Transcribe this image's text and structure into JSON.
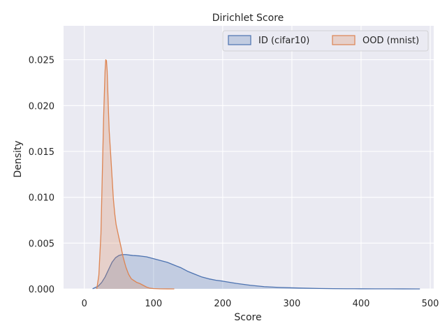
{
  "chart_data": {
    "type": "area",
    "title": "Dirichlet Score",
    "xlabel": "Score",
    "ylabel": "Density",
    "xlim": [
      -30,
      505
    ],
    "ylim": [
      0,
      0.0287
    ],
    "x_ticks": [
      0,
      100,
      200,
      300,
      400,
      500
    ],
    "x_tick_labels": [
      "0",
      "100",
      "200",
      "300",
      "400",
      "500"
    ],
    "y_ticks": [
      0,
      0.005,
      0.01,
      0.015,
      0.02,
      0.025
    ],
    "y_tick_labels": [
      "0.000",
      "0.005",
      "0.010",
      "0.015",
      "0.020",
      "0.025"
    ],
    "grid": true,
    "legend_placement": "top-right",
    "legend_columns": 2,
    "series": [
      {
        "name": "ID (cifar10)",
        "color": "#4c72b0",
        "x": [
          12,
          20,
          25,
          30,
          35,
          40,
          45,
          50,
          55,
          60,
          70,
          80,
          90,
          100,
          110,
          120,
          130,
          140,
          150,
          160,
          170,
          180,
          190,
          200,
          220,
          240,
          260,
          280,
          300,
          320,
          340,
          360,
          380,
          400,
          420,
          440,
          460,
          480,
          485
        ],
        "y": [
          2e-05,
          0.0003,
          0.0007,
          0.0013,
          0.0021,
          0.0029,
          0.0034,
          0.00365,
          0.00375,
          0.00375,
          0.00365,
          0.0036,
          0.0035,
          0.0033,
          0.0031,
          0.0029,
          0.0026,
          0.0023,
          0.0019,
          0.0016,
          0.0013,
          0.0011,
          0.00095,
          0.00085,
          0.0006,
          0.0004,
          0.00025,
          0.00017,
          0.00012,
          8e-05,
          5e-05,
          3e-05,
          2e-05,
          1.5e-05,
          1e-05,
          8e-06,
          5e-06,
          2e-06,
          0.0
        ]
      },
      {
        "name": "OOD (mnist)",
        "color": "#dd8452",
        "x": [
          18,
          21,
          24,
          26,
          28,
          30,
          31,
          32,
          33,
          34,
          35,
          36,
          38,
          40,
          42,
          44,
          46,
          48,
          50,
          53,
          56,
          60,
          64,
          68,
          72,
          76,
          80,
          85,
          90,
          95,
          100,
          110,
          120,
          130
        ],
        "y": [
          0.0,
          0.0015,
          0.006,
          0.0125,
          0.019,
          0.0238,
          0.025,
          0.0249,
          0.0238,
          0.0215,
          0.0192,
          0.0172,
          0.0148,
          0.0123,
          0.0098,
          0.0082,
          0.007,
          0.0063,
          0.0056,
          0.0046,
          0.0035,
          0.0024,
          0.0016,
          0.0011,
          0.0009,
          0.0007,
          0.0006,
          0.0004,
          0.0002,
          8e-05,
          4e-05,
          1e-05,
          5e-06,
          0.0
        ]
      }
    ]
  }
}
